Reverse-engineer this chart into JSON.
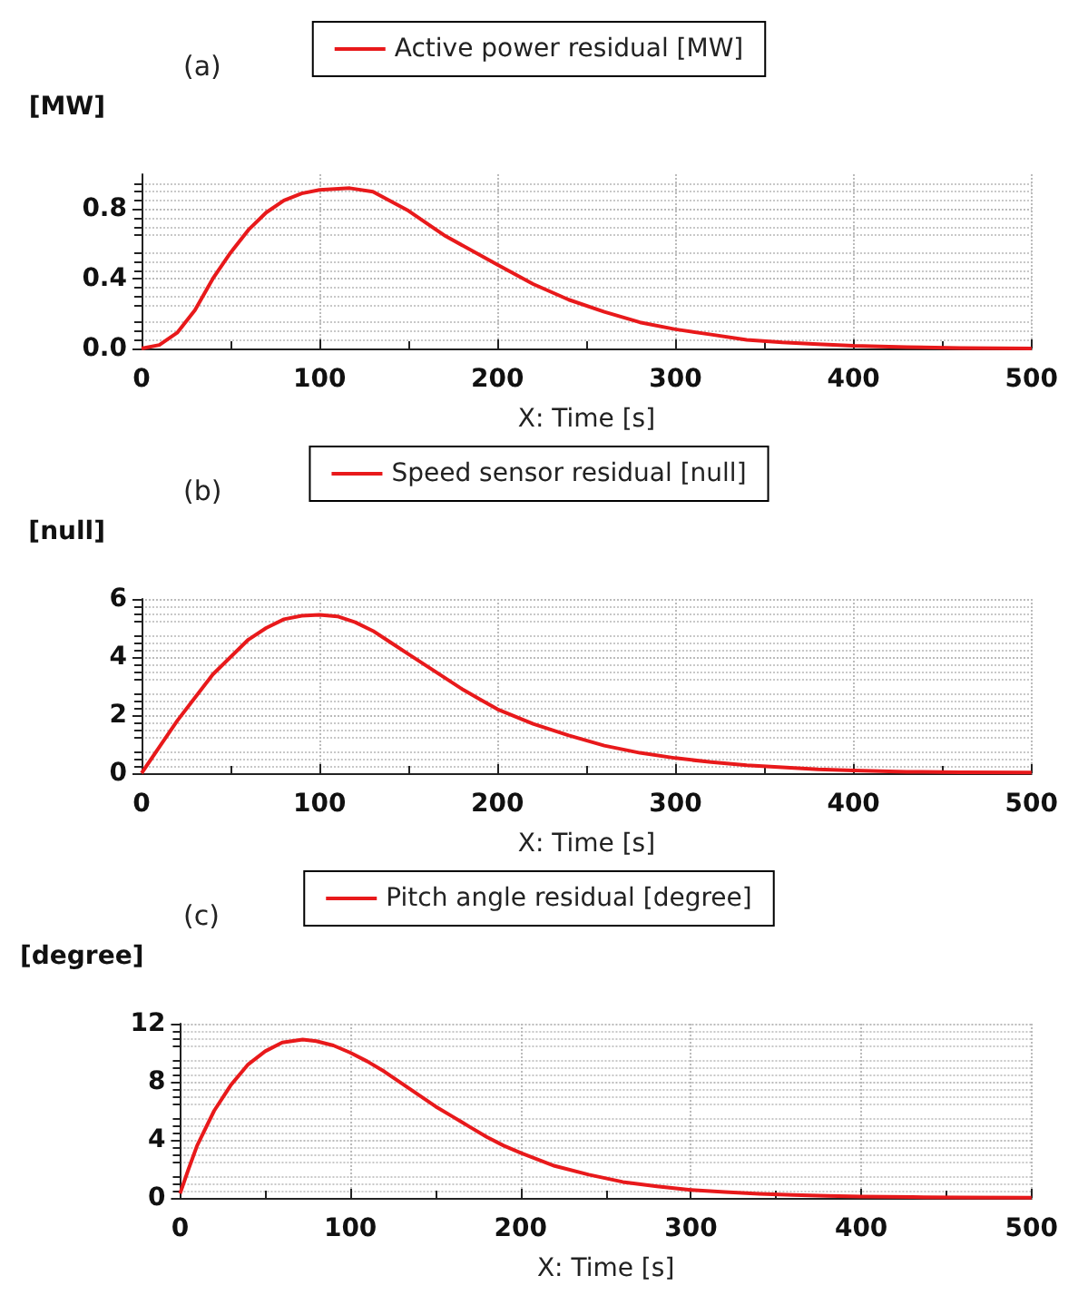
{
  "chart_data": [
    {
      "type": "line",
      "title": "(a)",
      "ylabel": "[MW]",
      "xlabel": "X: Time [s]",
      "legend": "top",
      "grid": true,
      "marker": "none",
      "line_style": "solid",
      "xlim": [
        0,
        500
      ],
      "xticks": [
        0,
        100,
        200,
        300,
        400,
        500
      ],
      "ylim": [
        0,
        1.0
      ],
      "yticks": [
        {
          "value": 0,
          "label": "0.0"
        },
        0.4,
        0.8
      ],
      "series": [
        {
          "name": "Active power residual [MW]",
          "color": "#e8191b",
          "x": [
            0,
            10,
            20,
            30,
            40,
            50,
            60,
            70,
            80,
            90,
            100,
            117,
            130,
            150,
            170,
            200,
            220,
            240,
            260,
            280,
            300,
            320,
            340,
            360,
            380,
            400,
            430,
            460,
            500
          ],
          "values": [
            0,
            0.02,
            0.09,
            0.22,
            0.4,
            0.55,
            0.68,
            0.78,
            0.85,
            0.89,
            0.91,
            0.92,
            0.9,
            0.79,
            0.65,
            0.48,
            0.37,
            0.28,
            0.21,
            0.15,
            0.11,
            0.08,
            0.05,
            0.035,
            0.025,
            0.015,
            0.008,
            0.003,
            0
          ]
        }
      ]
    },
    {
      "type": "line",
      "title": "(b)",
      "ylabel": "[null]",
      "xlabel": "X: Time [s]",
      "legend": "top",
      "grid": true,
      "marker": "none",
      "line_style": "solid",
      "xlim": [
        0,
        500
      ],
      "xticks": [
        0,
        100,
        200,
        300,
        400,
        500
      ],
      "ylim": [
        0,
        6
      ],
      "yticks": [
        0,
        2,
        4,
        6
      ],
      "series": [
        {
          "name": "Speed sensor residual [null]",
          "color": "#e8191b",
          "x": [
            0,
            10,
            20,
            30,
            40,
            50,
            60,
            70,
            80,
            90,
            100,
            110,
            120,
            130,
            140,
            150,
            160,
            170,
            180,
            190,
            200,
            220,
            240,
            260,
            280,
            300,
            320,
            340,
            360,
            380,
            400,
            430,
            460,
            500
          ],
          "values": [
            0,
            0.9,
            1.8,
            2.6,
            3.4,
            4.0,
            4.6,
            5.0,
            5.3,
            5.42,
            5.45,
            5.4,
            5.2,
            4.9,
            4.5,
            4.1,
            3.7,
            3.3,
            2.9,
            2.55,
            2.2,
            1.7,
            1.3,
            0.95,
            0.7,
            0.52,
            0.38,
            0.27,
            0.2,
            0.13,
            0.09,
            0.05,
            0.03,
            0.02
          ]
        }
      ]
    },
    {
      "type": "line",
      "title": "(c)",
      "ylabel": "[degree]",
      "xlabel": "X: Time [s]",
      "legend": "top",
      "grid": true,
      "marker": "none",
      "line_style": "solid",
      "xlim": [
        0,
        500
      ],
      "xticks": [
        0,
        100,
        200,
        300,
        400,
        500
      ],
      "ylim": [
        0,
        12
      ],
      "yticks": [
        0,
        4,
        8,
        12
      ],
      "series": [
        {
          "name": "Pitch angle residual [degree]",
          "color": "#e8191b",
          "x": [
            0,
            5,
            10,
            20,
            30,
            40,
            50,
            60,
            72,
            80,
            90,
            100,
            110,
            120,
            130,
            140,
            150,
            160,
            170,
            180,
            190,
            200,
            220,
            240,
            260,
            280,
            300,
            320,
            340,
            360,
            380,
            400,
            430,
            460,
            500
          ],
          "values": [
            0.3,
            2,
            3.6,
            6,
            7.8,
            9.2,
            10.1,
            10.7,
            10.9,
            10.8,
            10.5,
            10.0,
            9.4,
            8.7,
            7.9,
            7.1,
            6.3,
            5.6,
            4.9,
            4.2,
            3.6,
            3.1,
            2.2,
            1.6,
            1.1,
            0.8,
            0.55,
            0.4,
            0.28,
            0.2,
            0.14,
            0.1,
            0.06,
            0.03,
            0.02
          ]
        }
      ]
    }
  ]
}
